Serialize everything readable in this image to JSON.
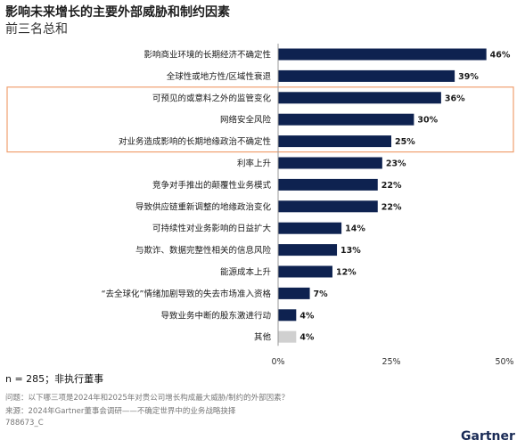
{
  "header": {
    "title": "影响未来增长的主要外部威胁和制约因素",
    "subtitle": "前三名总和"
  },
  "chart_data": {
    "type": "bar",
    "orientation": "horizontal",
    "categories": [
      "影响商业环境的长期经济不确定性",
      "全球性或地方性/区域性衰退",
      "可预见的或意料之外的监管变化",
      "网络安全风险",
      "对业务造成影响的长期地缘政治不确定性",
      "利率上升",
      "竞争对手推出的颠覆性业务模式",
      "导致供应链重新调整的地缘政治变化",
      "可持续性对业务影响的日益扩大",
      "与欺诈、数据完整性相关的信息风险",
      "能源成本上升",
      "“去全球化”情绪加剧导致的失去市场准入资格",
      "导致业务中断的股东激进行动",
      "其他"
    ],
    "values": [
      46,
      39,
      36,
      30,
      25,
      23,
      22,
      22,
      14,
      13,
      12,
      7,
      4,
      4
    ],
    "value_labels": [
      "46%",
      "39%",
      "36%",
      "30%",
      "25%",
      "23%",
      "22%",
      "22%",
      "14%",
      "13%",
      "12%",
      "7%",
      "4%",
      "4%"
    ],
    "highlighted_categories": [
      2,
      3,
      4
    ],
    "x_ticks": [
      "0%",
      "25%",
      "50%"
    ],
    "xlim": [
      0,
      50
    ],
    "colors": {
      "bar": "#0e2250",
      "other_bar": "#d0d0d0",
      "highlight_box": "#f0a070",
      "axis": "#999999"
    }
  },
  "footer": {
    "sample": "n = 285；非执行董事",
    "question": "问题：以下哪三项是2024年和2025年对贵公司增长构成最大威胁/制约的外部因素？",
    "source": "来源：2024年Gartner董事会调研——不确定世界中的业务战略抉择",
    "id": "788673_C",
    "logo": "Gartner"
  }
}
